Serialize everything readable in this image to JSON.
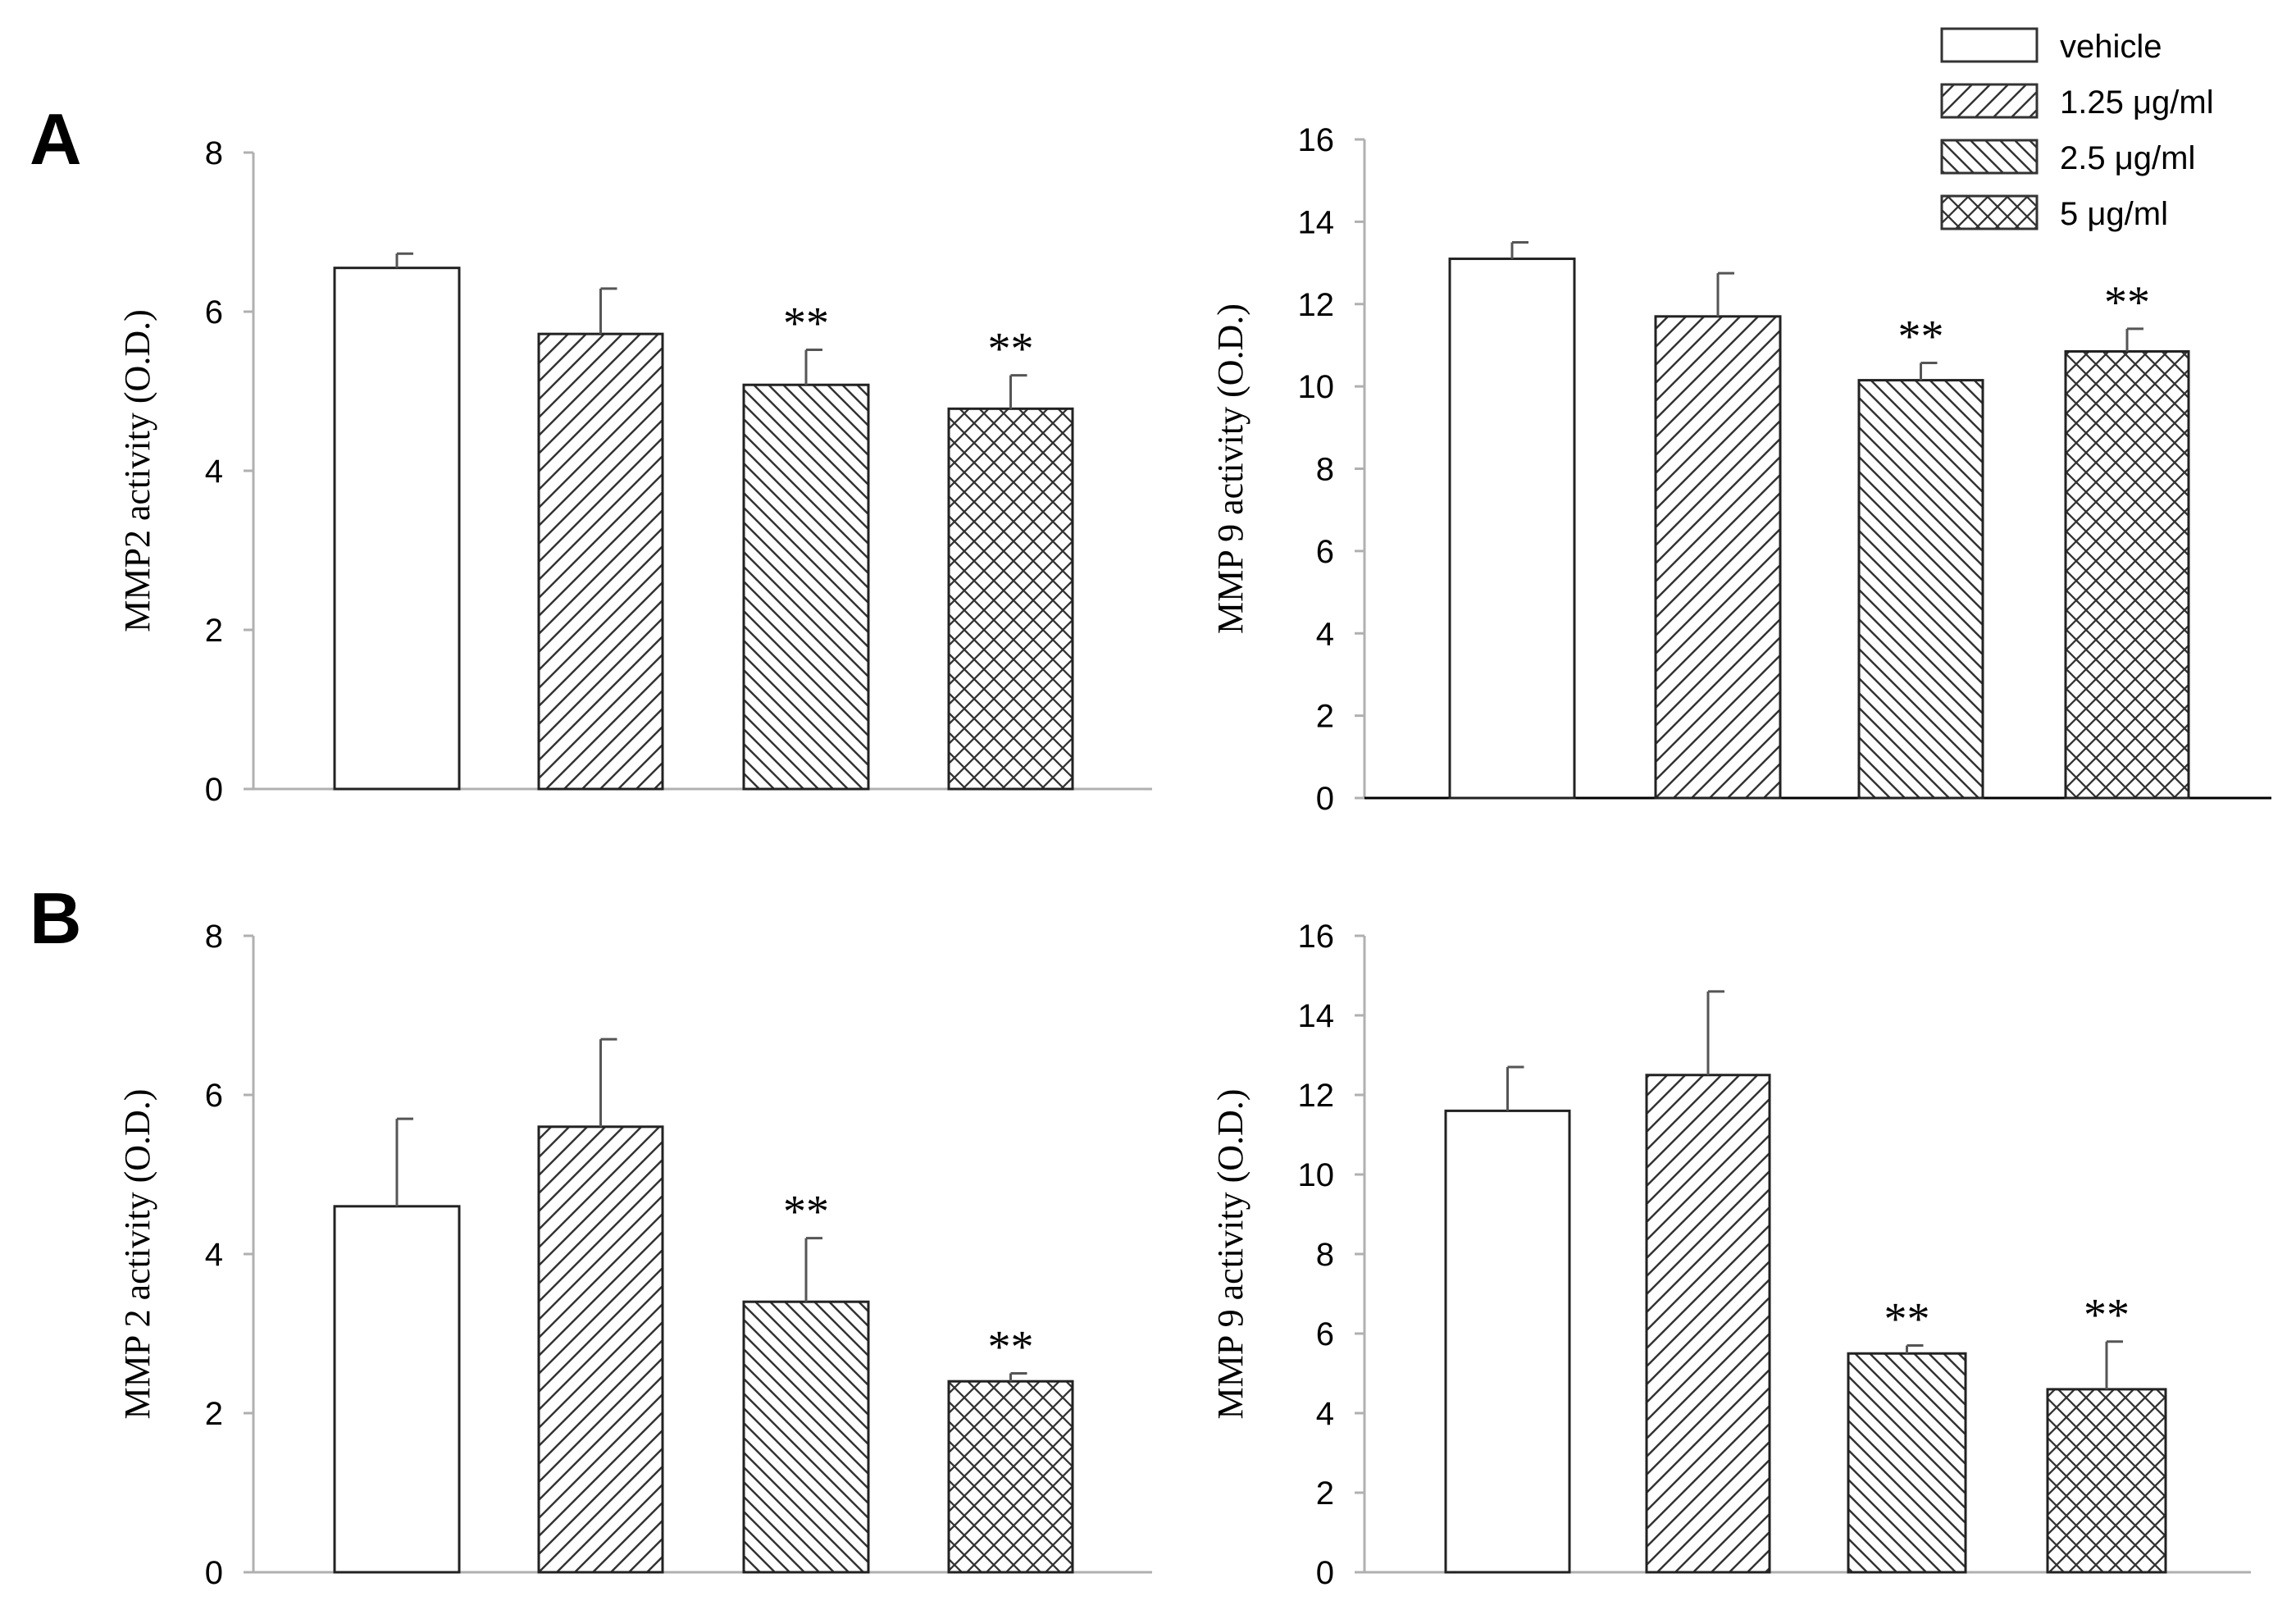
{
  "panel_labels": [
    "A",
    "B"
  ],
  "legend": {
    "entries": [
      {
        "label": "vehicle",
        "pattern": "none"
      },
      {
        "label": "1.25 μg/ml",
        "pattern": "fwd"
      },
      {
        "label": "2.5 μg/ml",
        "pattern": "back"
      },
      {
        "label": "5 μg/ml",
        "pattern": "cross"
      }
    ]
  },
  "chart_data": [
    {
      "type": "bar",
      "panel": "A",
      "ylabel": "MMP2 activity (O.D.)",
      "ylim": [
        0,
        8
      ],
      "yticks": [
        0,
        2,
        4,
        6,
        8
      ],
      "categories": [
        "vehicle",
        "1.25 μg/ml",
        "2.5 μg/ml",
        "5 μg/ml"
      ],
      "values": [
        6.55,
        5.72,
        5.08,
        4.78
      ],
      "errors": [
        0.18,
        0.57,
        0.44,
        0.42
      ],
      "significance": [
        "",
        "",
        "**",
        "**"
      ]
    },
    {
      "type": "bar",
      "panel": "A",
      "ylabel": "MMP 9 activity (O.D.)",
      "ylim": [
        0,
        16
      ],
      "yticks": [
        0,
        2,
        4,
        6,
        8,
        10,
        12,
        14,
        16
      ],
      "categories": [
        "vehicle",
        "1.25 μg/ml",
        "2.5 μg/ml",
        "5 μg/ml"
      ],
      "values": [
        13.1,
        11.7,
        10.15,
        10.85
      ],
      "errors": [
        0.4,
        1.05,
        0.42,
        0.55
      ],
      "significance": [
        "",
        "",
        "**",
        "**"
      ]
    },
    {
      "type": "bar",
      "panel": "B",
      "ylabel": "MMP 2 activity (O.D.)",
      "ylim": [
        0,
        8
      ],
      "yticks": [
        0,
        2,
        4,
        6,
        8
      ],
      "categories": [
        "vehicle",
        "1.25 μg/ml",
        "2.5 μg/ml",
        "5 μg/ml"
      ],
      "values": [
        4.6,
        5.6,
        3.4,
        2.4
      ],
      "errors": [
        1.1,
        1.1,
        0.8,
        0.1
      ],
      "significance": [
        "",
        "",
        "**",
        "**"
      ]
    },
    {
      "type": "bar",
      "panel": "B",
      "ylabel": "MMP 9 activity (O.D.)",
      "ylim": [
        0,
        16
      ],
      "yticks": [
        0,
        2,
        4,
        6,
        8,
        10,
        12,
        14,
        16
      ],
      "categories": [
        "vehicle",
        "1.25 μg/ml",
        "2.5 μg/ml",
        "5 μg/ml"
      ],
      "values": [
        11.6,
        12.5,
        5.5,
        4.6
      ],
      "errors": [
        1.1,
        2.1,
        0.2,
        1.2
      ],
      "significance": [
        "",
        "",
        "**",
        "**"
      ]
    }
  ]
}
